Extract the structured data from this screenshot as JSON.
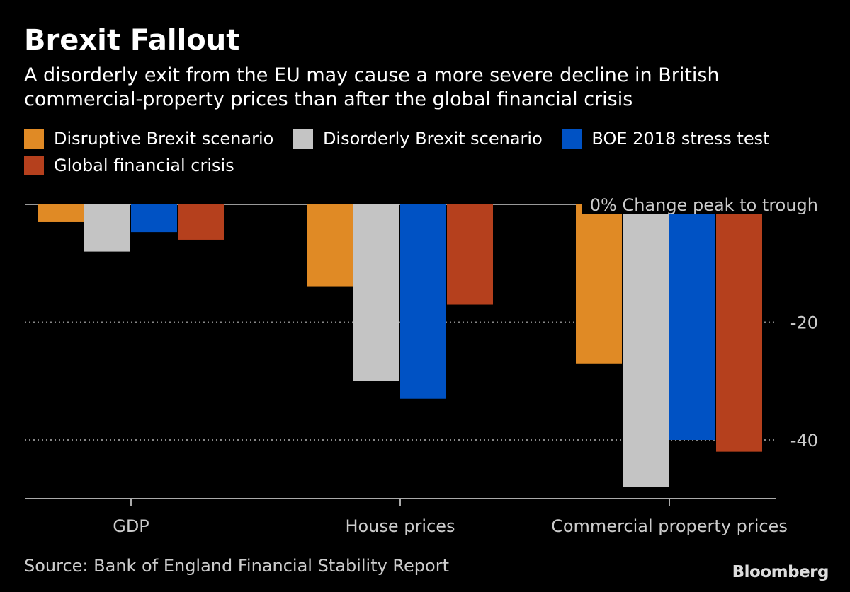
{
  "title": "Brexit Fallout",
  "subtitle": "A disorderly exit from the EU may cause a more severe decline in British commercial-property prices than after the global financial crisis",
  "source": "Source: Bank of England Financial Stability Report",
  "logo": "Bloomberg",
  "chart_data": {
    "type": "bar",
    "categories": [
      "GDP",
      "House prices",
      "Commercial property prices"
    ],
    "series": [
      {
        "name": "Disruptive Brexit scenario",
        "color": "#e08a25",
        "values": [
          -3,
          -14,
          -27
        ]
      },
      {
        "name": "Disorderly Brexit scenario",
        "color": "#c4c4c4",
        "values": [
          -8,
          -30,
          -48
        ]
      },
      {
        "name": "BOE 2018 stress test",
        "color": "#0052c4",
        "values": [
          -4.7,
          -33,
          -40
        ]
      },
      {
        "name": "Global financial crisis",
        "color": "#b5401d",
        "values": [
          -6,
          -17,
          -42
        ]
      }
    ],
    "ylabel": "% Change peak to trough",
    "yticks": [
      0,
      -20,
      -40
    ],
    "ytick_labels": [
      "0",
      "-20",
      "-40"
    ],
    "ylim": [
      -50,
      0
    ],
    "grid": true,
    "legend": "top"
  }
}
